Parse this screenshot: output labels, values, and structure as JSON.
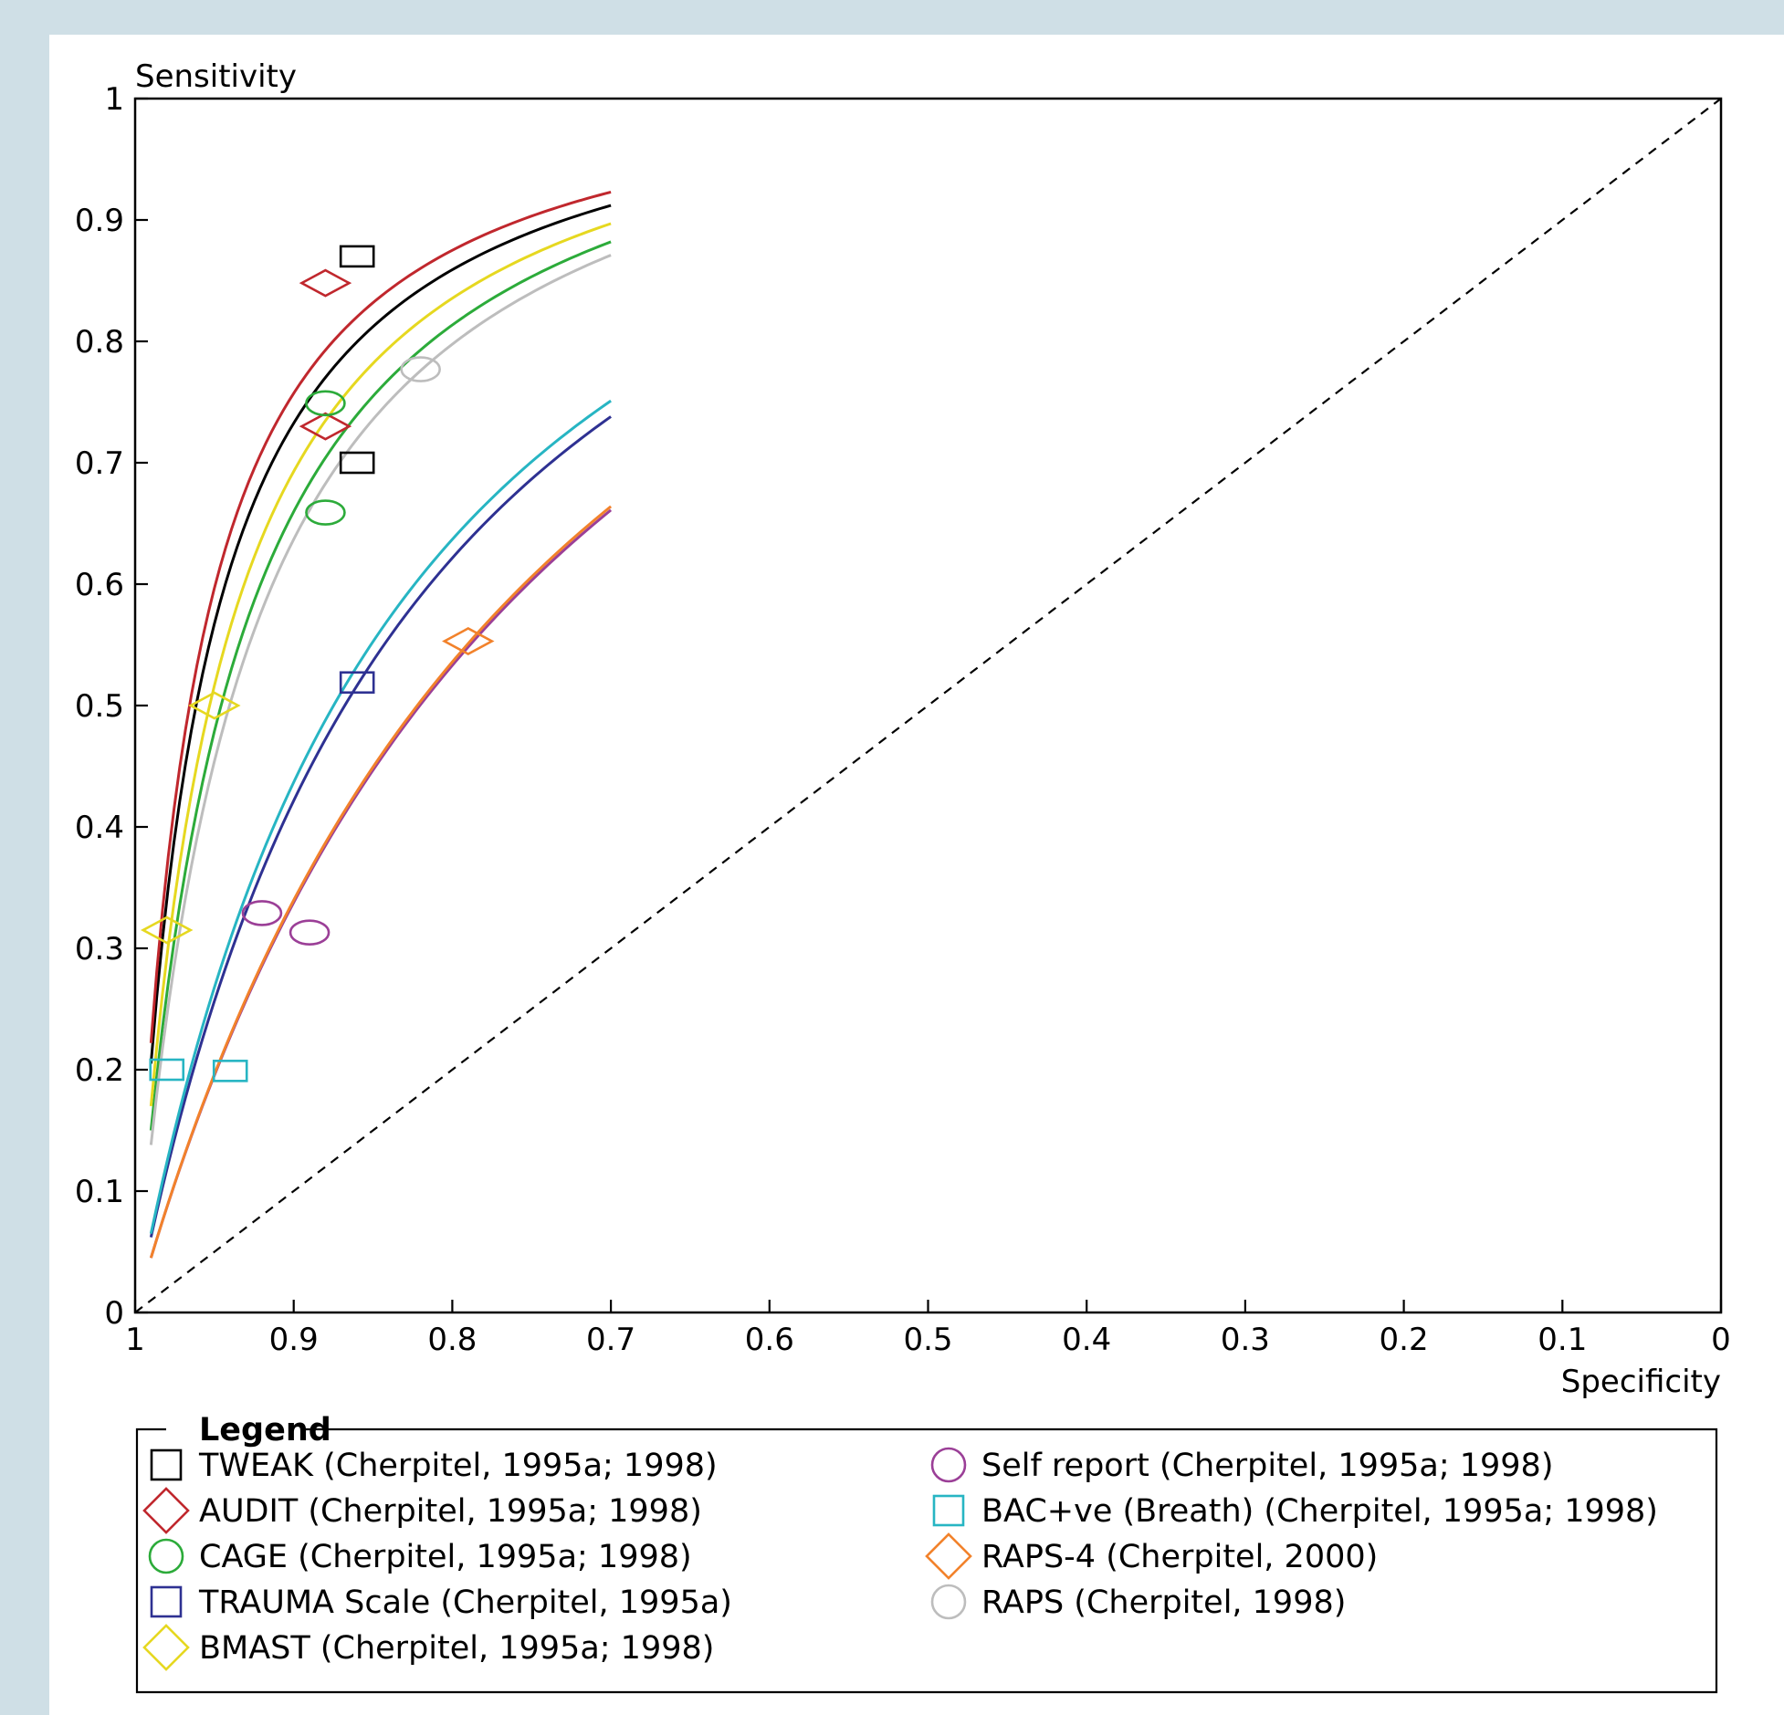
{
  "chart_data": {
    "type": "scatter",
    "xlabel": "Specificity",
    "ylabel": "Sensitivity",
    "xlim": [
      1,
      0
    ],
    "ylim": [
      0,
      1
    ],
    "x_reversed": true,
    "x_ticks": [
      1,
      0.9,
      0.8,
      0.7,
      0.6,
      0.5,
      0.4,
      0.3,
      0.2,
      0.1,
      0
    ],
    "x_tick_labels": [
      "1",
      "0.9",
      "0.8",
      "0.7",
      "0.6",
      "0.5",
      "0.4",
      "0.3",
      "0.2",
      "0.1",
      "0"
    ],
    "y_ticks": [
      0,
      0.1,
      0.2,
      0.3,
      0.4,
      0.5,
      0.6,
      0.7,
      0.8,
      0.9,
      1
    ],
    "y_tick_labels": [
      "0",
      "0.1",
      "0.2",
      "0.3",
      "0.4",
      "0.5",
      "0.6",
      "0.7",
      "0.8",
      "0.9",
      "1"
    ],
    "grid": false,
    "diagonal_reference": true,
    "legend_title": "Legend",
    "legend_position": "bottom",
    "series": [
      {
        "name": "TWEAK (Cherpitel, 1995a; 1998)",
        "marker": "square",
        "color": "#000000",
        "points": [
          {
            "x": 0.86,
            "y": 0.87
          },
          {
            "x": 0.86,
            "y": 0.7
          }
        ],
        "curve": {
          "from_spec": 0.99,
          "to_spec": 0.7,
          "y_start": 0.205,
          "y_end": 0.912
        }
      },
      {
        "name": "AUDIT (Cherpitel, 1995a; 1998)",
        "marker": "diamond",
        "color": "#c0272d",
        "points": [
          {
            "x": 0.88,
            "y": 0.848
          },
          {
            "x": 0.88,
            "y": 0.73
          }
        ],
        "curve": {
          "from_spec": 0.99,
          "to_spec": 0.7,
          "y_start": 0.222,
          "y_end": 0.923
        }
      },
      {
        "name": "CAGE (Cherpitel, 1995a; 1998)",
        "marker": "circle",
        "color": "#2cab3a",
        "points": [
          {
            "x": 0.88,
            "y": 0.749
          },
          {
            "x": 0.88,
            "y": 0.659
          }
        ],
        "curve": {
          "from_spec": 0.99,
          "to_spec": 0.7,
          "y_start": 0.15,
          "y_end": 0.882
        }
      },
      {
        "name": "TRAUMA Scale (Cherpitel, 1995a)",
        "marker": "square",
        "color": "#2e3192",
        "points": [
          {
            "x": 0.86,
            "y": 0.519
          }
        ],
        "curve": {
          "from_spec": 0.99,
          "to_spec": 0.7,
          "y_start": 0.062,
          "y_end": 0.738
        }
      },
      {
        "name": "BMAST (Cherpitel, 1995a; 1998)",
        "marker": "diamond",
        "color": "#e6d820",
        "points": [
          {
            "x": 0.95,
            "y": 0.5
          },
          {
            "x": 0.98,
            "y": 0.315
          }
        ],
        "curve": {
          "from_spec": 0.99,
          "to_spec": 0.7,
          "y_start": 0.17,
          "y_end": 0.897
        }
      },
      {
        "name": "Self report (Cherpitel, 1995a; 1998)",
        "marker": "circle",
        "color": "#9b3f97",
        "points": [
          {
            "x": 0.92,
            "y": 0.329
          },
          {
            "x": 0.89,
            "y": 0.313
          }
        ],
        "curve": {
          "from_spec": 0.99,
          "to_spec": 0.7,
          "y_start": 0.045,
          "y_end": 0.661
        }
      },
      {
        "name": "BAC+ve (Breath) (Cherpitel, 1995a; 1998)",
        "marker": "square",
        "color": "#27b5c3",
        "points": [
          {
            "x": 0.98,
            "y": 0.2
          },
          {
            "x": 0.94,
            "y": 0.199
          }
        ],
        "curve": {
          "from_spec": 0.99,
          "to_spec": 0.7,
          "y_start": 0.065,
          "y_end": 0.751
        }
      },
      {
        "name": "RAPS-4 (Cherpitel, 2000)",
        "marker": "diamond",
        "color": "#f2822b",
        "points": [
          {
            "x": 0.79,
            "y": 0.553
          }
        ],
        "curve": {
          "from_spec": 0.99,
          "to_spec": 0.7,
          "y_start": 0.045,
          "y_end": 0.664
        }
      },
      {
        "name": "RAPS (Cherpitel, 1998)",
        "marker": "circle",
        "color": "#bdbdbd",
        "points": [
          {
            "x": 0.82,
            "y": 0.777
          }
        ],
        "curve": {
          "from_spec": 0.99,
          "to_spec": 0.7,
          "y_start": 0.138,
          "y_end": 0.871
        }
      }
    ]
  }
}
